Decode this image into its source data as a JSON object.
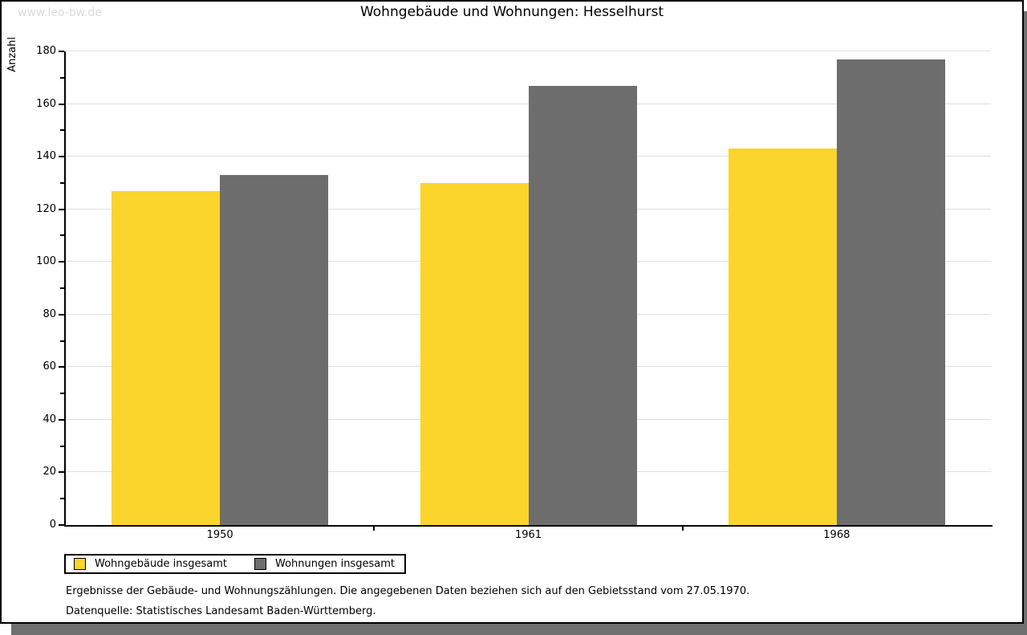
{
  "watermark": "www.leo-bw.de",
  "chart_data": {
    "type": "bar",
    "title": "Wohngebäude und Wohnungen: Hesselhurst",
    "xlabel": "",
    "ylabel": "Anzahl",
    "categories": [
      "1950",
      "1961",
      "1968"
    ],
    "series": [
      {
        "name": "Wohngebäude insgesamt",
        "color": "#fbd42c",
        "values": [
          127,
          130,
          143
        ]
      },
      {
        "name": "Wohnungen insgesamt",
        "color": "#6d6d6d",
        "values": [
          133,
          167,
          177
        ]
      }
    ],
    "ylim": [
      0,
      180
    ],
    "ytick_major": 20,
    "ytick_minor": 10,
    "grid": "horizontal-major",
    "legend_position": "bottom-left"
  },
  "footer": {
    "line1": "Ergebnisse der Gebäude- und Wohnungszählungen. Die angegebenen Daten beziehen sich auf den Gebietsstand vom 27.05.1970.",
    "line2": "Datenquelle: Statistisches Landesamt Baden-Württemberg."
  },
  "colors": {
    "bar_yellow": "#fbd42c",
    "bar_gray": "#6d6d6d",
    "gridline": "#e0e0e0",
    "axis": "#000000",
    "shadow": "#6f6f6f",
    "watermark_text": "#dadada",
    "background": "#ffffff"
  }
}
